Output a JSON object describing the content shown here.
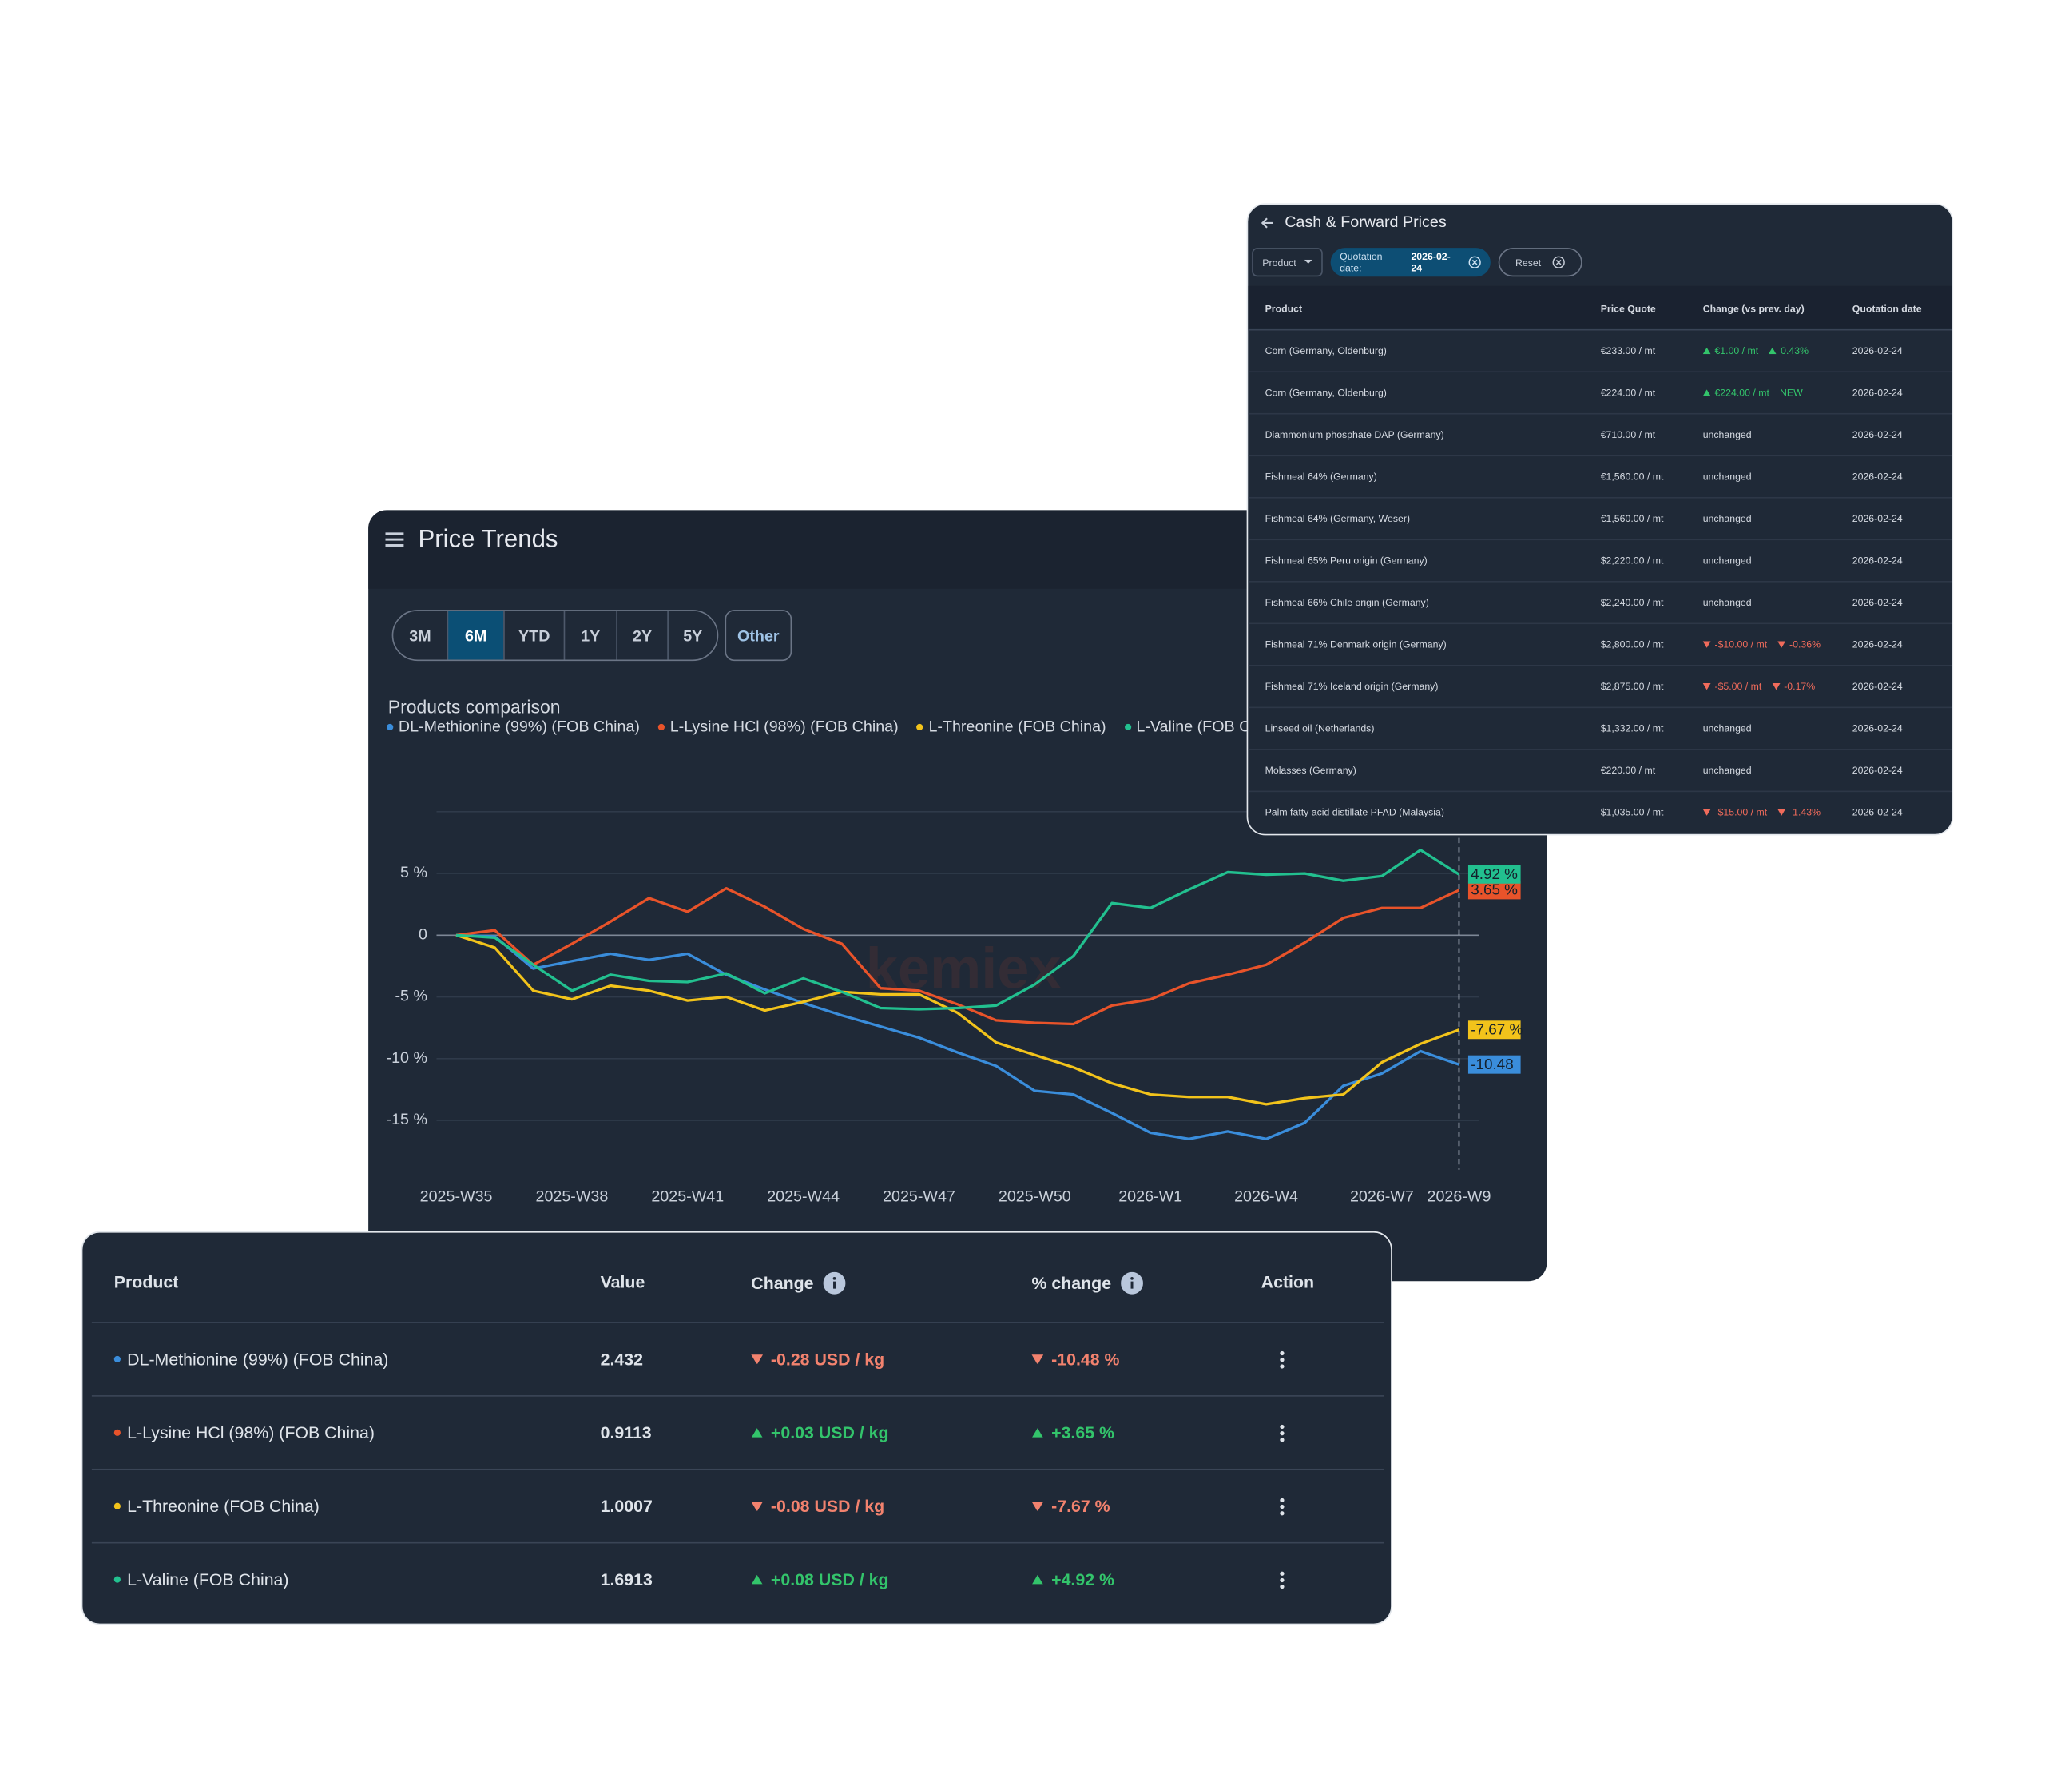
{
  "price_trends": {
    "title": "Price Trends",
    "periods": [
      "3M",
      "6M",
      "YTD",
      "1Y",
      "2Y",
      "5Y"
    ],
    "active_period": 1,
    "other": "Other",
    "watermark": "kemiex"
  },
  "chart_data": {
    "type": "line",
    "title": "Products comparison",
    "categories": [
      "2025-W35",
      null,
      null,
      "2025-W38",
      null,
      null,
      "2025-W41",
      null,
      null,
      "2025-W44",
      null,
      null,
      "2025-W47",
      null,
      null,
      "2025-W50",
      null,
      null,
      "2026-W1",
      null,
      null,
      "2026-W4",
      null,
      null,
      "2026-W7",
      null,
      "2026-W9"
    ],
    "series": [
      {
        "name": "DL-Methionine (99%) (FOB China)",
        "color": "#3a8ddb",
        "values": [
          0,
          -0.1,
          -2.7,
          -2.1,
          -1.5,
          -2.0,
          -1.5,
          -3.2,
          -4.4,
          -5.5,
          -6.5,
          -7.4,
          -8.3,
          -9.5,
          -10.6,
          -12.6,
          -12.9,
          -14.4,
          -16.0,
          -16.5,
          -15.9,
          -16.5,
          -15.2,
          -12.2,
          -11.2,
          -9.4,
          -10.48
        ],
        "value_labels": [
          null,
          null,
          null,
          null,
          null,
          null,
          null,
          null,
          null,
          null,
          null,
          null,
          null,
          null,
          null,
          null,
          null,
          null,
          null,
          null,
          null,
          null,
          null,
          null,
          null,
          null,
          "-10.48"
        ]
      },
      {
        "name": "L-Lysine HCl (98%) (FOB China)",
        "color": "#e8532a",
        "values": [
          0,
          0.4,
          -2.4,
          -0.7,
          1.1,
          3.0,
          1.9,
          3.8,
          2.3,
          0.5,
          -0.7,
          -4.3,
          -4.5,
          -5.6,
          -6.9,
          -7.1,
          -7.2,
          -5.7,
          -5.2,
          -3.9,
          -3.2,
          -2.4,
          -0.6,
          1.4,
          2.2,
          2.2,
          3.65
        ],
        "value_labels": [
          null,
          null,
          null,
          null,
          null,
          null,
          null,
          null,
          null,
          null,
          null,
          null,
          null,
          null,
          null,
          null,
          null,
          null,
          null,
          null,
          null,
          null,
          null,
          null,
          null,
          null,
          "3.65 %"
        ]
      },
      {
        "name": "L-Threonine (FOB China)",
        "color": "#f2c31b",
        "values": [
          0,
          -1.0,
          -4.5,
          -5.2,
          -4.1,
          -4.5,
          -5.3,
          -5.0,
          -6.1,
          -5.4,
          -4.6,
          -4.8,
          -4.8,
          -6.3,
          -8.7,
          -9.7,
          -10.7,
          -12.0,
          -12.9,
          -13.1,
          -13.1,
          -13.7,
          -13.2,
          -12.9,
          -10.3,
          -8.8,
          -7.67
        ],
        "value_labels": [
          null,
          null,
          null,
          null,
          null,
          null,
          null,
          null,
          null,
          null,
          null,
          null,
          null,
          null,
          null,
          null,
          null,
          null,
          null,
          null,
          null,
          null,
          null,
          null,
          null,
          null,
          "-7.67 %"
        ]
      },
      {
        "name": "L-Valine (FOB China)",
        "color": "#22c08f",
        "values": [
          0,
          -0.2,
          -2.4,
          -4.5,
          -3.2,
          -3.7,
          -3.8,
          -3.1,
          -4.7,
          -3.5,
          -4.6,
          -5.9,
          -6.0,
          -5.9,
          -5.7,
          -4.0,
          -1.7,
          2.6,
          2.2,
          3.7,
          5.1,
          4.9,
          5.0,
          4.4,
          4.8,
          6.9,
          4.92
        ],
        "value_labels": [
          null,
          null,
          null,
          null,
          null,
          null,
          null,
          null,
          null,
          null,
          null,
          null,
          null,
          null,
          null,
          null,
          null,
          null,
          null,
          null,
          null,
          null,
          null,
          null,
          null,
          null,
          "4.92 %"
        ]
      }
    ],
    "ylim": [
      -19,
      10
    ],
    "yticks": [
      {
        "value": -15,
        "label": "-15 %"
      },
      {
        "value": -10,
        "label": "-10 %"
      },
      {
        "value": -5,
        "label": "-5 %"
      },
      0,
      {
        "value": 5,
        "label": "5 %"
      }
    ],
    "grid": true,
    "end_marker": true
  },
  "cash_forward": {
    "title": "Cash & Forward Prices",
    "filters": {
      "product": "Product",
      "quotation_label": "Quotation date:",
      "quotation_value": "2026-02-24",
      "reset": "Reset"
    },
    "columns": [
      "Product",
      "Price Quote",
      "Change (vs prev. day)",
      "Quotation date"
    ],
    "rows": [
      {
        "product": "Corn (Germany, Oldenburg)",
        "price": "€233.00 / mt",
        "change": {
          "trend": "up",
          "amount": "€1.00 / mt",
          "percent": "0.43%"
        },
        "date": "2026-02-24"
      },
      {
        "product": "Corn (Germany, Oldenburg)",
        "price": "€224.00 / mt",
        "change": {
          "trend": "up",
          "amount": "€224.00 / mt",
          "tag": "NEW"
        },
        "date": "2026-02-24"
      },
      {
        "product": "Diammonium phosphate DAP (Germany)",
        "price": "€710.00 / mt",
        "change": {
          "text": "unchanged"
        },
        "date": "2026-02-24"
      },
      {
        "product": "Fishmeal 64% (Germany)",
        "price": "€1,560.00 / mt",
        "change": {
          "text": "unchanged"
        },
        "date": "2026-02-24"
      },
      {
        "product": "Fishmeal 64% (Germany, Weser)",
        "price": "€1,560.00 / mt",
        "change": {
          "text": "unchanged"
        },
        "date": "2026-02-24"
      },
      {
        "product": "Fishmeal 65% Peru origin (Germany)",
        "price": "$2,220.00 / mt",
        "change": {
          "text": "unchanged"
        },
        "date": "2026-02-24"
      },
      {
        "product": "Fishmeal 66% Chile origin (Germany)",
        "price": "$2,240.00 / mt",
        "change": {
          "text": "unchanged"
        },
        "date": "2026-02-24"
      },
      {
        "product": "Fishmeal 71% Denmark origin (Germany)",
        "price": "$2,800.00 / mt",
        "change": {
          "trend": "down",
          "amount": "-$10.00 / mt",
          "percent": "-0.36%"
        },
        "date": "2026-02-24"
      },
      {
        "product": "Fishmeal 71% Iceland origin (Germany)",
        "price": "$2,875.00 / mt",
        "change": {
          "trend": "down",
          "amount": "-$5.00 / mt",
          "percent": "-0.17%"
        },
        "date": "2026-02-24"
      },
      {
        "product": "Linseed oil (Netherlands)",
        "price": "$1,332.00 / mt",
        "change": {
          "text": "unchanged"
        },
        "date": "2026-02-24"
      },
      {
        "product": "Molasses (Germany)",
        "price": "€220.00 / mt",
        "change": {
          "text": "unchanged"
        },
        "date": "2026-02-24"
      },
      {
        "product": "Palm fatty acid distillate PFAD (Malaysia)",
        "price": "$1,035.00 / mt",
        "change": {
          "trend": "down",
          "amount": "-$15.00 / mt",
          "percent": "-1.43%"
        },
        "date": "2026-02-24"
      }
    ]
  },
  "comparison_table": {
    "columns": [
      "Product",
      "Value",
      "Change",
      "% change",
      "Action"
    ],
    "info_columns": [
      2,
      3
    ],
    "rows": [
      {
        "product": "DL-Methionine (99%) (FOB China)",
        "value": "2.432",
        "change": "-0.28 USD / kg",
        "percent_change": "-10.48 %",
        "trend": "down"
      },
      {
        "product": "L-Lysine HCl (98%) (FOB China)",
        "value": "0.9113",
        "change": "+0.03 USD / kg",
        "percent_change": "+3.65 %",
        "trend": "up"
      },
      {
        "product": "L-Threonine (FOB China)",
        "value": "1.0007",
        "change": "-0.08 USD / kg",
        "percent_change": "-7.67 %",
        "trend": "down"
      },
      {
        "product": "L-Valine (FOB China)",
        "value": "1.6913",
        "change": "+0.08 USD / kg",
        "percent_change": "+4.92 %",
        "trend": "up"
      }
    ]
  }
}
